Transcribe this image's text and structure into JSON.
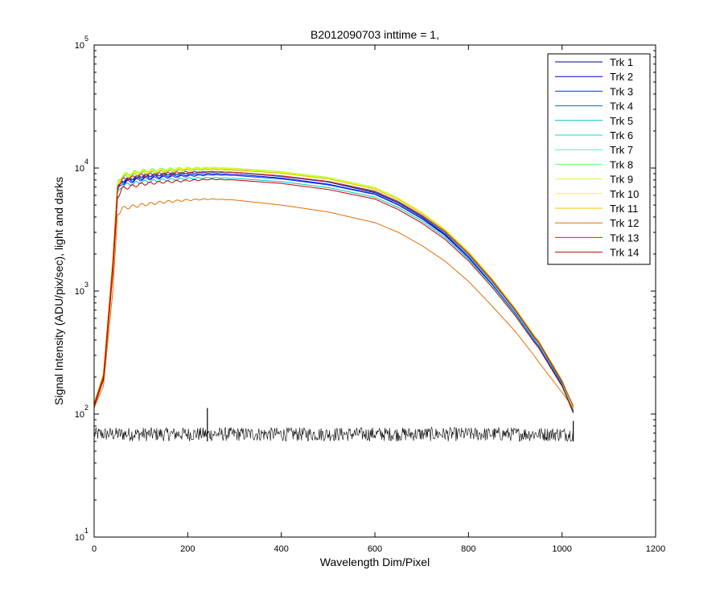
{
  "chart_data": {
    "type": "line",
    "title": "B2012090703 inttime = 1,",
    "xlabel": "Wavelength Dim/Pixel",
    "ylabel": "Signal Intensity (ADU/pix/sec), light and darks",
    "xlim": [
      0,
      1200
    ],
    "ylim": [
      10,
      100000
    ],
    "yscale": "log",
    "xticks": [
      "0",
      "200",
      "400",
      "600",
      "800",
      "1000",
      "1200"
    ],
    "yticks": [
      {
        "base": "10",
        "exp": "1"
      },
      {
        "base": "10",
        "exp": "2"
      },
      {
        "base": "10",
        "exp": "3"
      },
      {
        "base": "10",
        "exp": "4"
      },
      {
        "base": "10",
        "exp": "5"
      }
    ],
    "grid": false,
    "legend_position": "top-right",
    "x": [
      0,
      20,
      40,
      50,
      60,
      100,
      150,
      200,
      250,
      300,
      400,
      500,
      600,
      650,
      700,
      750,
      800,
      850,
      900,
      940,
      950,
      1000,
      1024
    ],
    "series": [
      {
        "name": "Trk 1",
        "color": "#00008F",
        "values": [
          115,
          190,
          1500,
          6900,
          7900,
          8600,
          8900,
          9100,
          9300,
          9200,
          8550,
          7700,
          6300,
          5200,
          4000,
          2900,
          1900,
          1150,
          660,
          400,
          360,
          170,
          102
        ]
      },
      {
        "name": "Trk 2",
        "color": "#0000D0",
        "values": [
          118,
          200,
          1600,
          6700,
          7700,
          8300,
          8600,
          8800,
          9000,
          8900,
          8300,
          7400,
          6150,
          5050,
          3900,
          2850,
          1880,
          1130,
          650,
          395,
          355,
          172,
          104
        ]
      },
      {
        "name": "Trk 3",
        "color": "#0030FF",
        "values": [
          120,
          205,
          1650,
          6500,
          7500,
          8100,
          8400,
          8600,
          8800,
          8700,
          8150,
          7300,
          6100,
          5000,
          3870,
          2830,
          1870,
          1140,
          660,
          405,
          362,
          175,
          106
        ]
      },
      {
        "name": "Trk 4",
        "color": "#0070C0",
        "values": [
          121,
          208,
          1700,
          6900,
          7900,
          8600,
          8900,
          9100,
          9300,
          9200,
          8600,
          7750,
          6400,
          5280,
          4080,
          2980,
          1970,
          1200,
          690,
          420,
          378,
          180,
          108
        ]
      },
      {
        "name": "Trk 5",
        "color": "#00BFBF",
        "values": [
          119,
          202,
          1600,
          6200,
          7200,
          7700,
          8000,
          8200,
          8350,
          8250,
          7750,
          6950,
          5800,
          4780,
          3720,
          2730,
          1820,
          1120,
          650,
          400,
          360,
          176,
          105
        ]
      },
      {
        "name": "Trk 6",
        "color": "#00DDDD",
        "values": [
          122,
          210,
          1750,
          7400,
          8400,
          9100,
          9400,
          9700,
          9800,
          9700,
          9100,
          8200,
          6750,
          5550,
          4280,
          3120,
          2060,
          1250,
          715,
          435,
          390,
          184,
          109
        ]
      },
      {
        "name": "Trk 7",
        "color": "#33FFCC",
        "values": [
          123,
          212,
          1800,
          7500,
          8600,
          9300,
          9600,
          9800,
          9950,
          9800,
          9200,
          8300,
          6850,
          5620,
          4330,
          3150,
          2080,
          1260,
          720,
          438,
          392,
          185,
          110
        ]
      },
      {
        "name": "Trk 8",
        "color": "#66FF66",
        "values": [
          124,
          215,
          1850,
          7700,
          8800,
          9500,
          9800,
          10000,
          10100,
          9950,
          9350,
          8400,
          6950,
          5700,
          4380,
          3180,
          2100,
          1270,
          725,
          440,
          395,
          186,
          111
        ]
      },
      {
        "name": "Trk 9",
        "color": "#CCFF33",
        "values": [
          124,
          215,
          1850,
          7600,
          8700,
          9400,
          9700,
          9950,
          10050,
          9900,
          9300,
          8350,
          6900,
          5680,
          4370,
          3170,
          2095,
          1268,
          724,
          440,
          396,
          186,
          112
        ]
      },
      {
        "name": "Trk 10",
        "color": "#FFFF00",
        "values": [
          123,
          213,
          1820,
          7500,
          8600,
          9300,
          9600,
          9850,
          9950,
          9800,
          9220,
          8300,
          6870,
          5650,
          4350,
          3160,
          2090,
          1265,
          722,
          439,
          395,
          188,
          113
        ]
      },
      {
        "name": "Trk 11",
        "color": "#FFBF00",
        "values": [
          122,
          210,
          1780,
          7300,
          8400,
          9100,
          9400,
          9650,
          9750,
          9600,
          9050,
          8150,
          6750,
          5560,
          4290,
          3120,
          2070,
          1258,
          718,
          436,
          393,
          189,
          114
        ]
      },
      {
        "name": "Trk 12",
        "color": "#E07000",
        "values": [
          112,
          170,
          1000,
          4200,
          4700,
          5000,
          5300,
          5500,
          5600,
          5500,
          5000,
          4400,
          3600,
          3000,
          2350,
          1750,
          1200,
          760,
          470,
          300,
          265,
          150,
          112
        ]
      },
      {
        "name": "Trk 13",
        "color": "#E02000",
        "values": [
          120,
          205,
          1700,
          7000,
          8000,
          8700,
          9000,
          9250,
          9350,
          9250,
          8650,
          7800,
          6500,
          5350,
          4150,
          3050,
          2020,
          1230,
          705,
          428,
          385,
          184,
          116
        ]
      },
      {
        "name": "Trk 14",
        "color": "#C00000",
        "values": [
          116,
          190,
          1400,
          5800,
          6800,
          7400,
          7700,
          7900,
          8100,
          8000,
          7500,
          6700,
          5600,
          4600,
          3580,
          2630,
          1760,
          1080,
          630,
          385,
          345,
          168,
          104
        ]
      }
    ],
    "darks": {
      "color": "#000000",
      "x_range": [
        0,
        1024
      ],
      "level_low": 60,
      "level_high": 78,
      "spike_x": 242,
      "spike_value": 112,
      "end_spike_value": 88
    }
  }
}
